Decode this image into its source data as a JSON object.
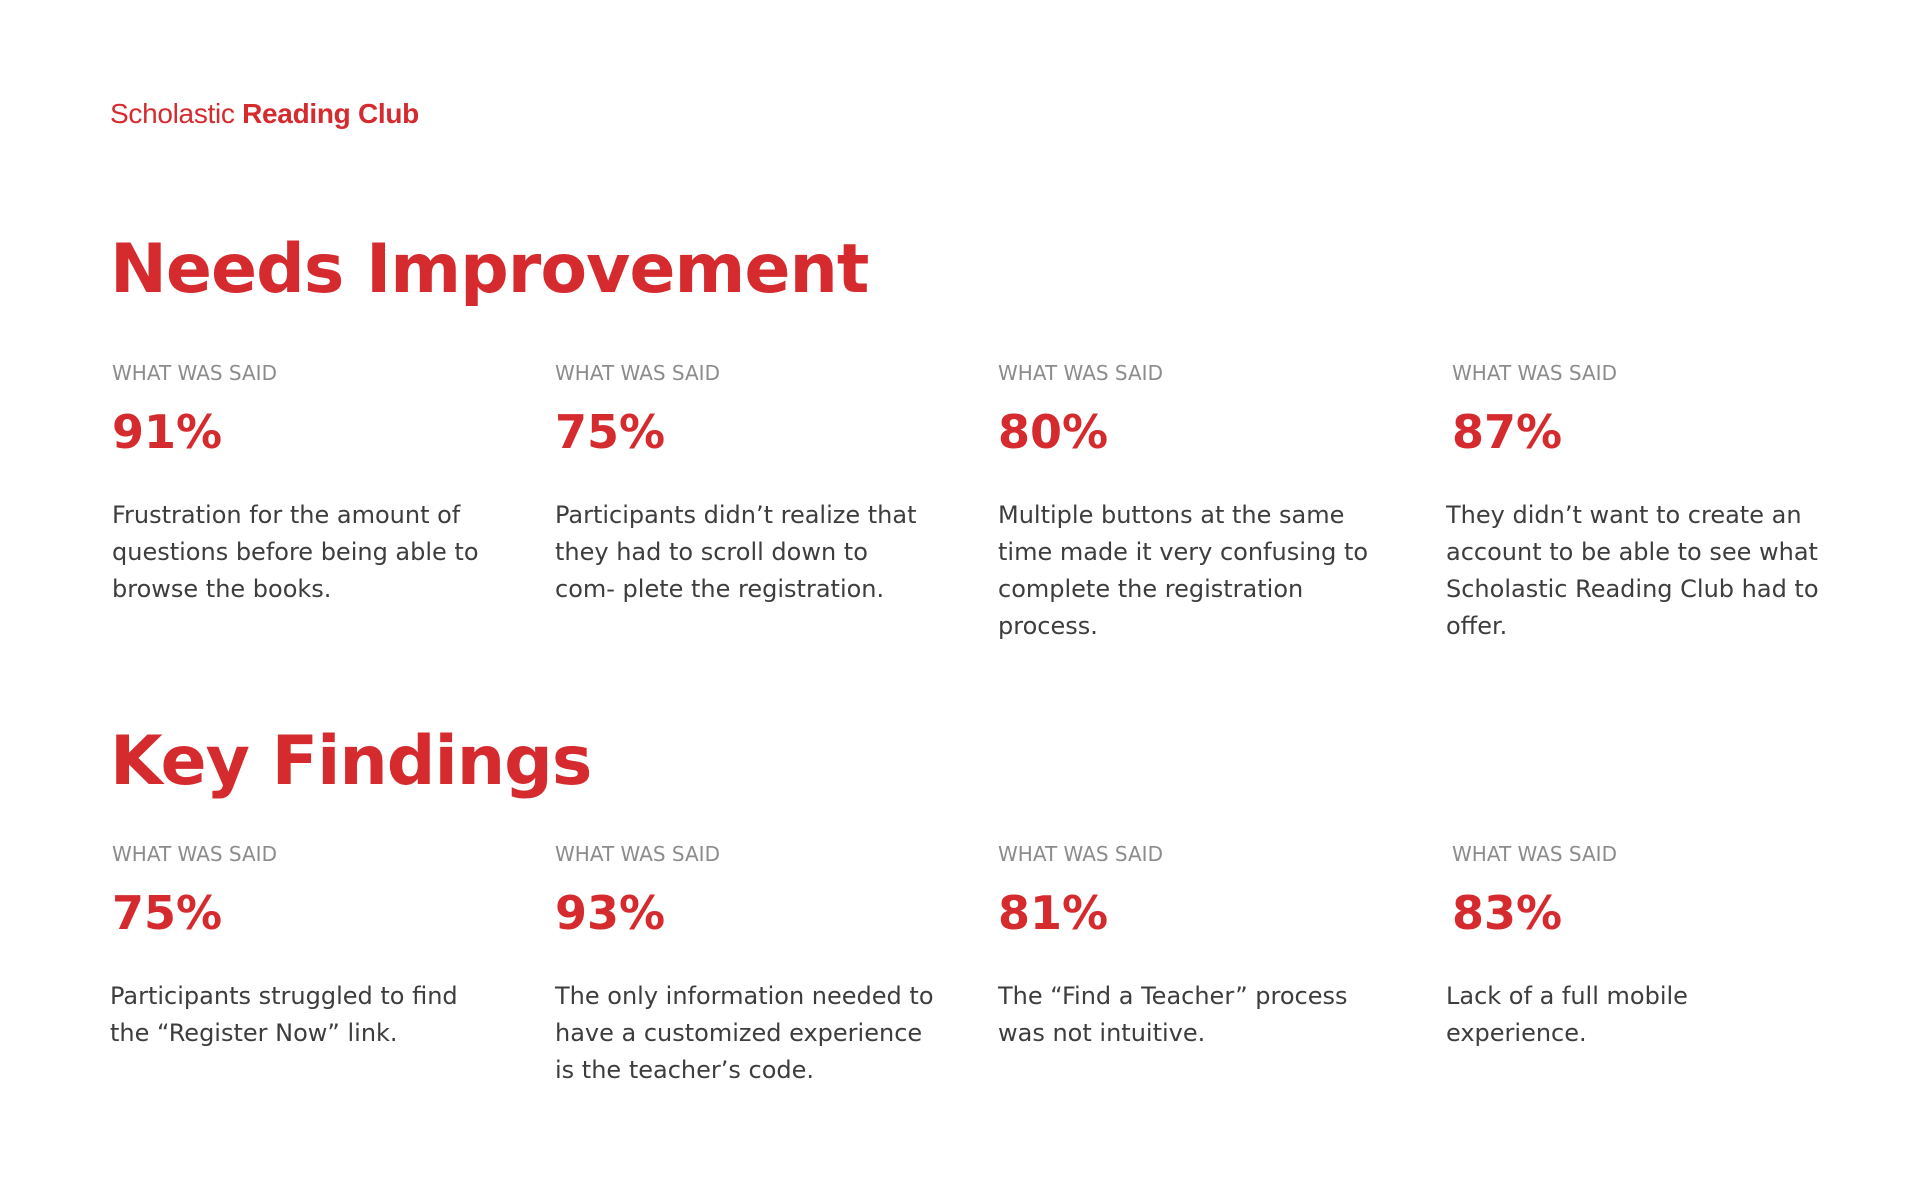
{
  "brand": {
    "name_light": "Scholastic",
    "name_bold": "Reading Club",
    "color": "#d52b2f"
  },
  "sections": [
    {
      "title": "Needs Improvement",
      "items": [
        {
          "label": "WHAT WAS SAID",
          "percent": "91%",
          "text": "Frustration for the amount of questions before being able to browse the books."
        },
        {
          "label": "WHAT WAS SAID",
          "percent": "75%",
          "text": "Participants didn’t realize that they had to scroll down to com- plete the registration."
        },
        {
          "label": "WHAT WAS SAID",
          "percent": "80%",
          "text": "Multiple buttons at the same time made it very confusing to complete the registration process."
        },
        {
          "label": "WHAT WAS SAID",
          "percent": "87%",
          "text": "They didn’t want to create an account to be able to see what Scholastic Reading Club had to offer."
        }
      ]
    },
    {
      "title": "Key Findings",
      "items": [
        {
          "label": "WHAT WAS SAID",
          "percent": "75%",
          "text": "Participants struggled to find the “Register Now” link."
        },
        {
          "label": "WHAT WAS SAID",
          "percent": "93%",
          "text": "The only information needed to have a customized experience is the teacher’s code."
        },
        {
          "label": "WHAT WAS SAID",
          "percent": "81%",
          "text": "The “Find a Teacher” process was not intuitive."
        },
        {
          "label": "WHAT WAS SAID",
          "percent": "83%",
          "text": "Lack of a full mobile experience."
        }
      ]
    }
  ]
}
